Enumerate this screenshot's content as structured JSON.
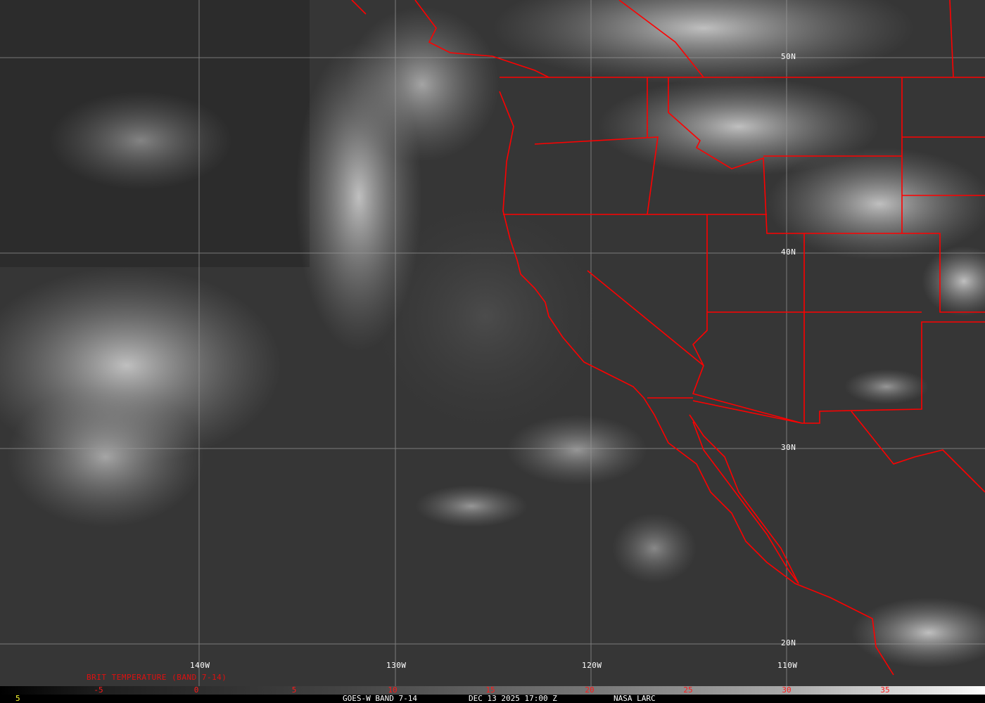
{
  "map": {
    "latitude_labels": [
      "50N",
      "40N",
      "30N",
      "20N"
    ],
    "longitude_labels": [
      "140W",
      "130W",
      "120W",
      "110W"
    ],
    "border_color": "#ff0000",
    "grid_color": "#9a9a9a"
  },
  "legend": {
    "title": "BRIT TEMPERATURE (BAND 7-14)",
    "ticks": [
      "-5",
      "0",
      "5",
      "10",
      "15",
      "20",
      "25",
      "30",
      "35"
    ],
    "tick_color": "#ff1a1a"
  },
  "footer": {
    "frame": "5",
    "product": "GOES-W BAND 7-14",
    "datetime": "DEC 13 2025 17:00 Z",
    "source": "NASA LARC"
  }
}
